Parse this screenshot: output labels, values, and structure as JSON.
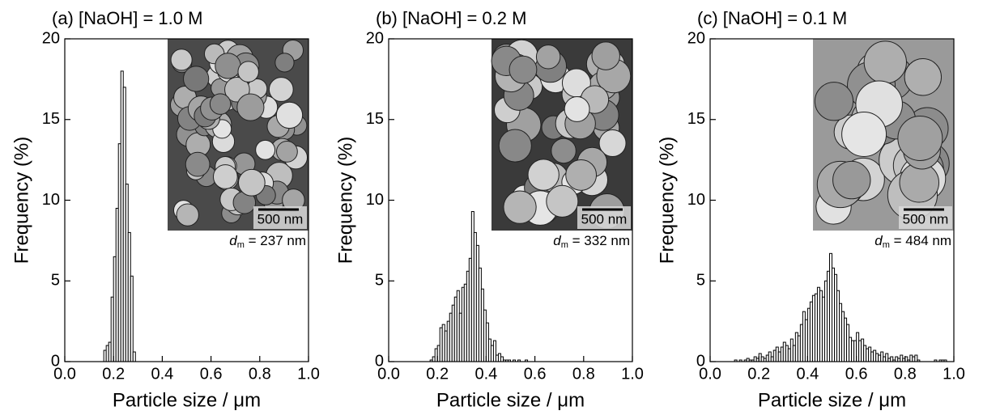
{
  "chart_data": [
    {
      "type": "histogram",
      "title": "(a) [NaOH] = 1.0 M",
      "x_label": "Particle size / μm",
      "y_label": "Frequency (%)",
      "scale_bar": "500 nm",
      "dm_symbol": "d",
      "dm_subscript": "m",
      "dm_text": " = 237 nm",
      "bins": [
        0.16,
        0.17,
        0.18,
        0.19,
        0.2,
        0.21,
        0.22,
        0.23,
        0.24,
        0.25,
        0.26,
        0.27,
        0.28,
        0.29
      ],
      "values": [
        0.7,
        1.0,
        1.2,
        4.0,
        6.5,
        9.5,
        13.5,
        18,
        17,
        11,
        8.0,
        5.3,
        0.6
      ],
      "color": "#ffffff",
      "edgecolor": "#000000",
      "xlim": [
        0,
        1
      ],
      "ylim": [
        0,
        20
      ],
      "xticks": [
        {
          "value": 0,
          "label": "0.0"
        },
        0.2,
        0.4,
        0.6,
        0.8,
        {
          "value": 1,
          "label": "1.0"
        }
      ],
      "yticks": [
        0,
        5,
        10,
        15,
        20
      ]
    },
    {
      "type": "histogram",
      "title": "(b) [NaOH] = 0.2 M",
      "x_label": "Particle size / μm",
      "y_label": "Frequency (%)",
      "scale_bar": "500 nm",
      "dm_symbol": "d",
      "dm_subscript": "m",
      "dm_text": " = 332 nm",
      "bins": [
        0.17,
        0.18,
        0.19,
        0.2,
        0.21,
        0.22,
        0.23,
        0.24,
        0.25,
        0.26,
        0.27,
        0.28,
        0.29,
        0.3,
        0.31,
        0.32,
        0.33,
        0.34,
        0.35,
        0.36,
        0.37,
        0.38,
        0.39,
        0.4,
        0.41,
        0.42,
        0.43,
        0.44,
        0.45,
        0.46,
        0.47,
        0.48,
        0.49,
        0.5,
        0.51,
        0.52,
        0.53,
        0.54,
        0.55,
        0.56,
        0.57
      ],
      "values": [
        0.1,
        0.3,
        0.8,
        1.0,
        2.1,
        2.3,
        1.9,
        2.5,
        3.0,
        3.5,
        4.0,
        4.4,
        3.0,
        4.6,
        4.8,
        5.6,
        6.4,
        9.3,
        8.0,
        7.2,
        5.8,
        4.5,
        3.2,
        2.4,
        1.4,
        1.0,
        1.3,
        0.4,
        0.5,
        0.3,
        0.1,
        0.1,
        0.1,
        0,
        0.1,
        0,
        0.1,
        0,
        0,
        0.1
      ],
      "color": "#ffffff",
      "edgecolor": "#000000",
      "xlim": [
        0,
        1
      ],
      "ylim": [
        0,
        20
      ],
      "xticks": [
        {
          "value": 0,
          "label": "0.0"
        },
        0.2,
        0.4,
        0.6,
        0.8,
        {
          "value": 1,
          "label": "1.0"
        }
      ],
      "yticks": [
        0,
        5,
        10,
        15,
        20
      ]
    },
    {
      "type": "histogram",
      "title": "(c) [NaOH] = 0.1 M",
      "x_label": "Particle size / μm",
      "y_label": "Frequency (%)",
      "scale_bar": "500 nm",
      "dm_symbol": "d",
      "dm_subscript": "m",
      "dm_text": " = 484 nm",
      "bins": [
        0.1,
        0.11,
        0.12,
        0.13,
        0.14,
        0.15,
        0.16,
        0.17,
        0.18,
        0.19,
        0.2,
        0.21,
        0.22,
        0.23,
        0.24,
        0.25,
        0.26,
        0.27,
        0.28,
        0.29,
        0.3,
        0.31,
        0.32,
        0.33,
        0.34,
        0.35,
        0.36,
        0.37,
        0.38,
        0.39,
        0.4,
        0.41,
        0.42,
        0.43,
        0.44,
        0.45,
        0.46,
        0.47,
        0.48,
        0.49,
        0.5,
        0.51,
        0.52,
        0.53,
        0.54,
        0.55,
        0.56,
        0.57,
        0.58,
        0.59,
        0.6,
        0.61,
        0.62,
        0.63,
        0.64,
        0.65,
        0.66,
        0.67,
        0.68,
        0.69,
        0.7,
        0.71,
        0.72,
        0.73,
        0.74,
        0.75,
        0.76,
        0.77,
        0.78,
        0.79,
        0.8,
        0.81,
        0.82,
        0.83,
        0.84,
        0.85,
        0.86,
        0.87,
        0.88,
        0.89,
        0.9,
        0.91,
        0.92,
        0.93,
        0.94,
        0.95,
        0.96,
        0.97
      ],
      "values": [
        0.1,
        0,
        0.1,
        0,
        0.1,
        0.2,
        0.1,
        0.1,
        0.3,
        0.2,
        0.5,
        0.3,
        0.2,
        0.4,
        0.6,
        0.3,
        0.7,
        0.9,
        0.6,
        0.9,
        1.2,
        1.0,
        0.8,
        1.4,
        1.0,
        1.8,
        1.6,
        2.3,
        3.1,
        2.6,
        3.3,
        3.7,
        4.1,
        4.2,
        4.6,
        4.4,
        4.0,
        5.0,
        5.6,
        6.7,
        5.8,
        5.4,
        4.4,
        3.6,
        3.1,
        2.7,
        2.3,
        1.5,
        1.3,
        1.3,
        1.8,
        1.3,
        1.4,
        1.0,
        0.8,
        0.9,
        0.6,
        0.7,
        0.5,
        0.4,
        0.6,
        0.3,
        0.5,
        0.2,
        0.3,
        0.1,
        0.3,
        0.2,
        0.4,
        0.2,
        0.3,
        0.1,
        0.4,
        0.3,
        0.4,
        0.1,
        0,
        0,
        0,
        0,
        0,
        0,
        0.1,
        0,
        0.1,
        0.1,
        0.1
      ],
      "color": "#ffffff",
      "edgecolor": "#000000",
      "xlim": [
        0,
        1
      ],
      "ylim": [
        0,
        20
      ],
      "xticks": [
        {
          "value": 0,
          "label": "0.0"
        },
        0.2,
        0.4,
        0.6,
        0.8,
        {
          "value": 1,
          "label": "1.0"
        }
      ],
      "yticks": [
        0,
        5,
        10,
        15,
        20
      ]
    }
  ]
}
